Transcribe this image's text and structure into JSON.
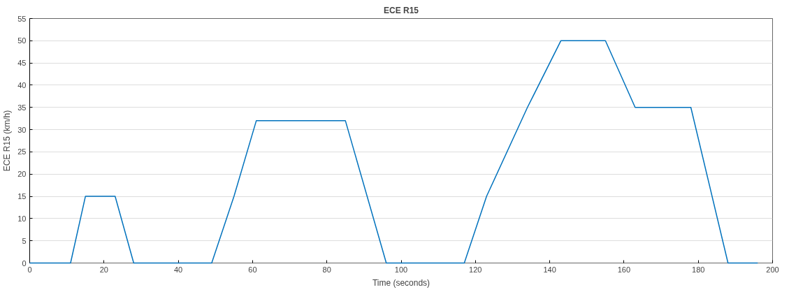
{
  "chart_data": {
    "type": "line",
    "title": "ECE R15",
    "xlabel": "Time (seconds)",
    "ylabel": "ECE R15 (km/h)",
    "x": [
      0,
      11,
      15,
      23,
      28,
      49,
      55,
      61,
      85,
      96,
      117,
      123,
      134,
      143,
      155,
      163,
      178,
      188,
      196
    ],
    "series": [
      {
        "color": "#0072bd",
        "values": [
          0,
          0,
          15,
          15,
          0,
          0,
          15,
          32,
          32,
          0,
          0,
          15,
          35,
          50,
          50,
          35,
          35,
          0,
          0
        ]
      }
    ],
    "xlim": [
      0,
      200
    ],
    "xticks": [
      0,
      20,
      40,
      60,
      80,
      100,
      120,
      140,
      160,
      180,
      200
    ],
    "ylim": [
      0,
      55
    ],
    "yticks": [
      0,
      5,
      10,
      15,
      20,
      25,
      30,
      35,
      40,
      45,
      50,
      55
    ],
    "grid": "y",
    "marker": "none",
    "line_style": "solid"
  }
}
